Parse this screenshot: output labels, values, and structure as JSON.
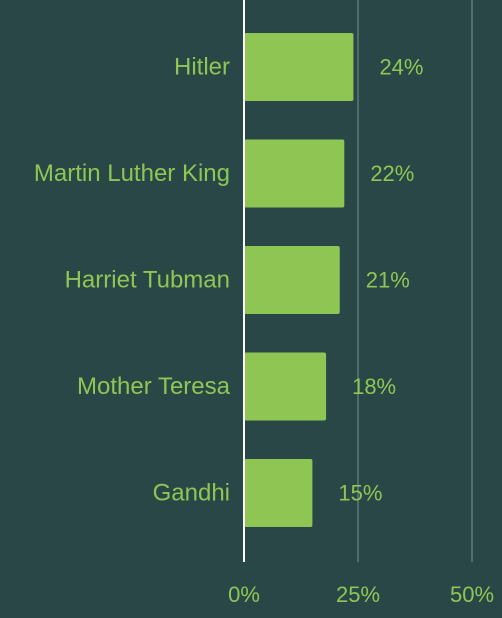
{
  "chart_data": {
    "type": "bar",
    "orientation": "horizontal",
    "categories": [
      "Hitler",
      "Martin Luther King",
      "Harriet Tubman",
      "Mother Teresa",
      "Gandhi"
    ],
    "values": [
      24,
      22,
      21,
      18,
      15
    ],
    "value_labels": [
      "24%",
      "22%",
      "21%",
      "18%",
      "15%"
    ],
    "x_ticks": [
      0,
      25,
      50
    ],
    "x_tick_labels": [
      "0%",
      "25%",
      "50%"
    ],
    "xlim": [
      0,
      50
    ],
    "grid": true,
    "legend": "none",
    "title": "",
    "xlabel": "",
    "ylabel": ""
  },
  "colors": {
    "background": "#2a4747",
    "bar": "#8fc653",
    "text": "#8fc653",
    "axis": "#ffffff",
    "grid": "#6e8585"
  }
}
